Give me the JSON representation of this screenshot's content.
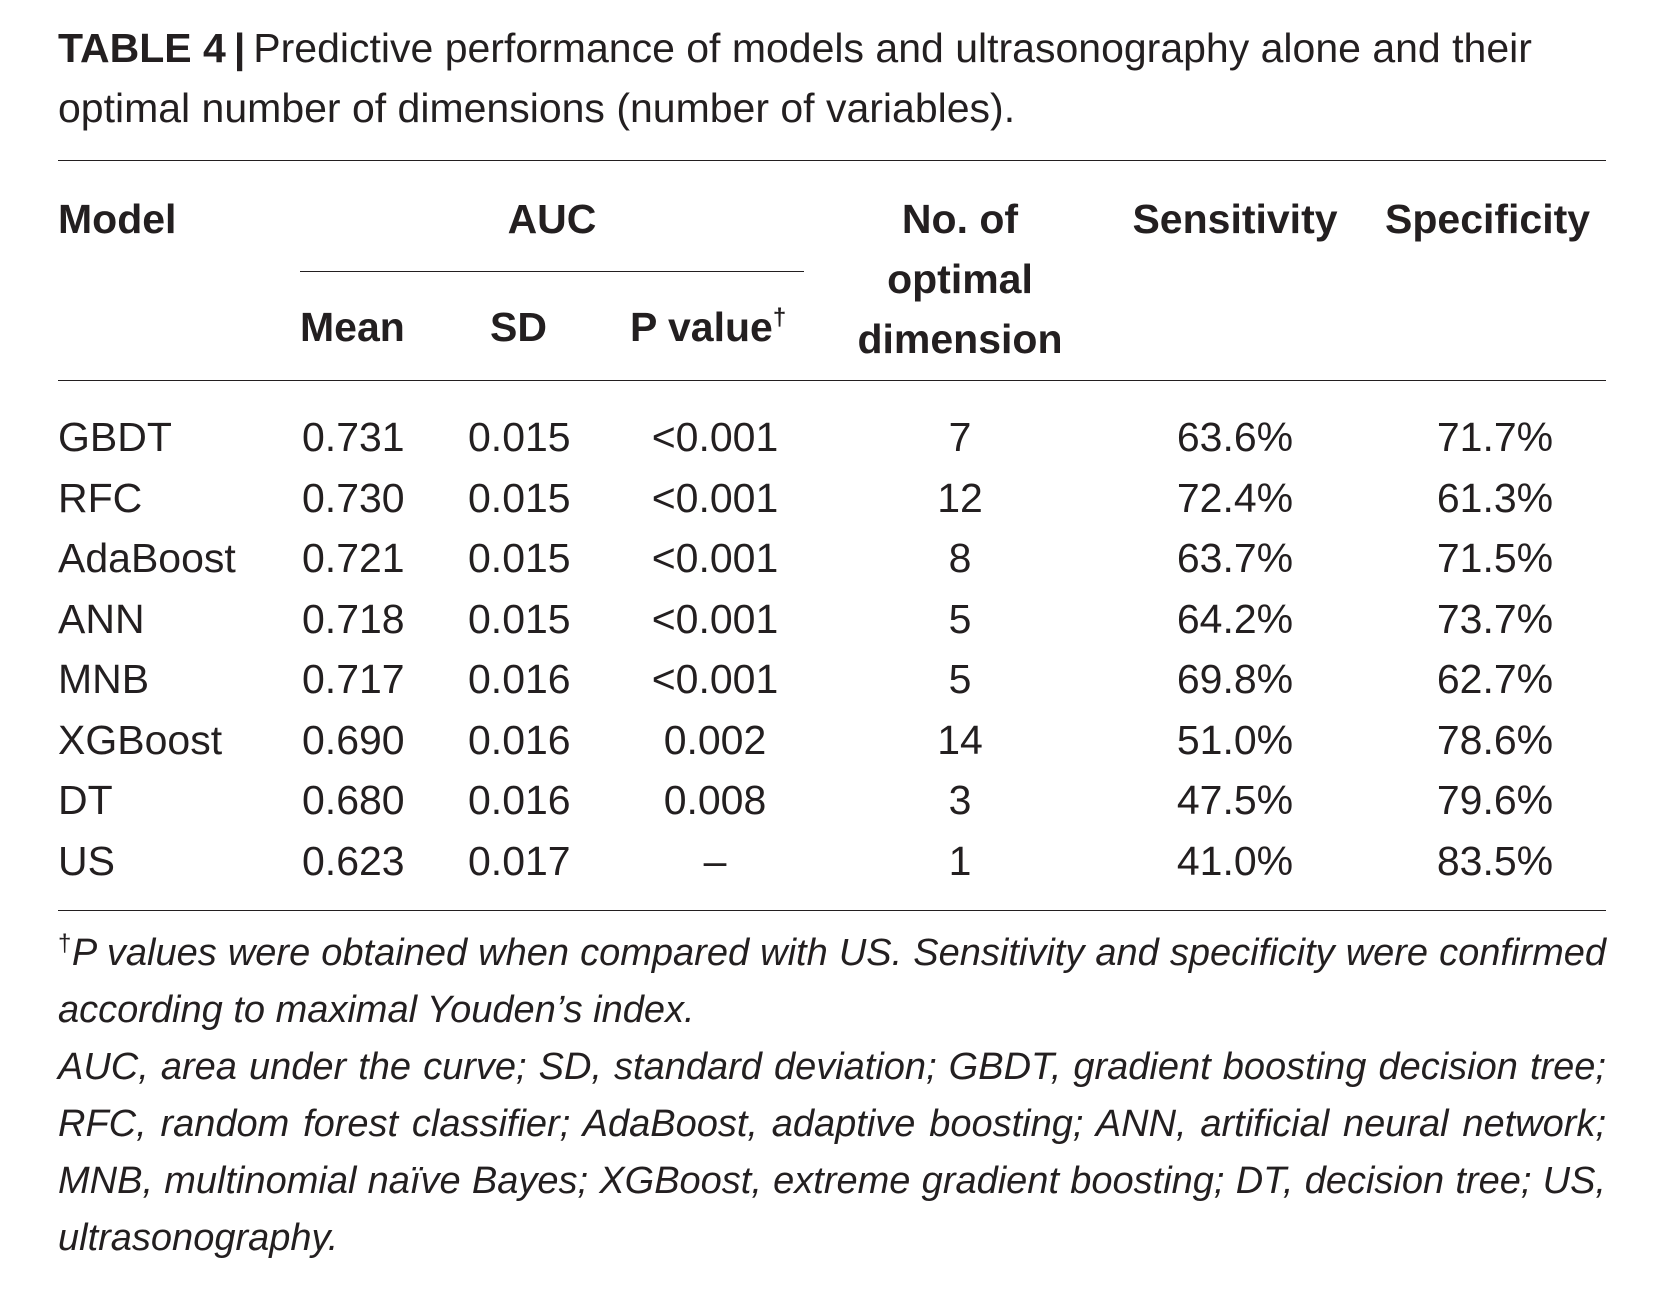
{
  "caption": {
    "label": "TABLE 4",
    "separator": "|",
    "text": "Predictive performance of models and ultrasonography alone and their optimal number of dimensions (number of variables)."
  },
  "headers": {
    "model": "Model",
    "auc": "AUC",
    "mean": "Mean",
    "sd": "SD",
    "p_value": "P value",
    "p_value_mark": "†",
    "dimension_line1": "No. of",
    "dimension_line2": "optimal",
    "dimension_line3": "dimension",
    "sensitivity": "Sensitivity",
    "specificity": "Specificity"
  },
  "rows": [
    {
      "model": "GBDT",
      "mean": "0.731",
      "sd": "0.015",
      "p": "<0.001",
      "dim": "7",
      "sens": "63.6%",
      "spec": "71.7%"
    },
    {
      "model": "RFC",
      "mean": "0.730",
      "sd": "0.015",
      "p": "<0.001",
      "dim": "12",
      "sens": "72.4%",
      "spec": "61.3%"
    },
    {
      "model": "AdaBoost",
      "mean": "0.721",
      "sd": "0.015",
      "p": "<0.001",
      "dim": "8",
      "sens": "63.7%",
      "spec": "71.5%"
    },
    {
      "model": "ANN",
      "mean": "0.718",
      "sd": "0.015",
      "p": "<0.001",
      "dim": "5",
      "sens": "64.2%",
      "spec": "73.7%"
    },
    {
      "model": "MNB",
      "mean": "0.717",
      "sd": "0.016",
      "p": "<0.001",
      "dim": "5",
      "sens": "69.8%",
      "spec": "62.7%"
    },
    {
      "model": "XGBoost",
      "mean": "0.690",
      "sd": "0.016",
      "p": "0.002",
      "dim": "14",
      "sens": "51.0%",
      "spec": "78.6%"
    },
    {
      "model": "DT",
      "mean": "0.680",
      "sd": "0.016",
      "p": "0.008",
      "dim": "3",
      "sens": "47.5%",
      "spec": "79.6%"
    },
    {
      "model": "US",
      "mean": "0.623",
      "sd": "0.017",
      "p": "–",
      "dim": "1",
      "sens": "41.0%",
      "spec": "83.5%"
    }
  ],
  "footnotes": {
    "dagger": "†",
    "note1": "P values were obtained when compared with US. Sensitivity and specificity were confirmed according to maximal Youden’s index.",
    "note2": "AUC, area under the curve; SD, standard deviation; GBDT, gradient boosting decision tree; RFC, random forest classifier; AdaBoost, adaptive boosting; ANN, artificial neural network; MNB, multinomial naïve Bayes; XGBoost, extreme gradient boosting; DT, decision tree; US, ultrasonography."
  }
}
